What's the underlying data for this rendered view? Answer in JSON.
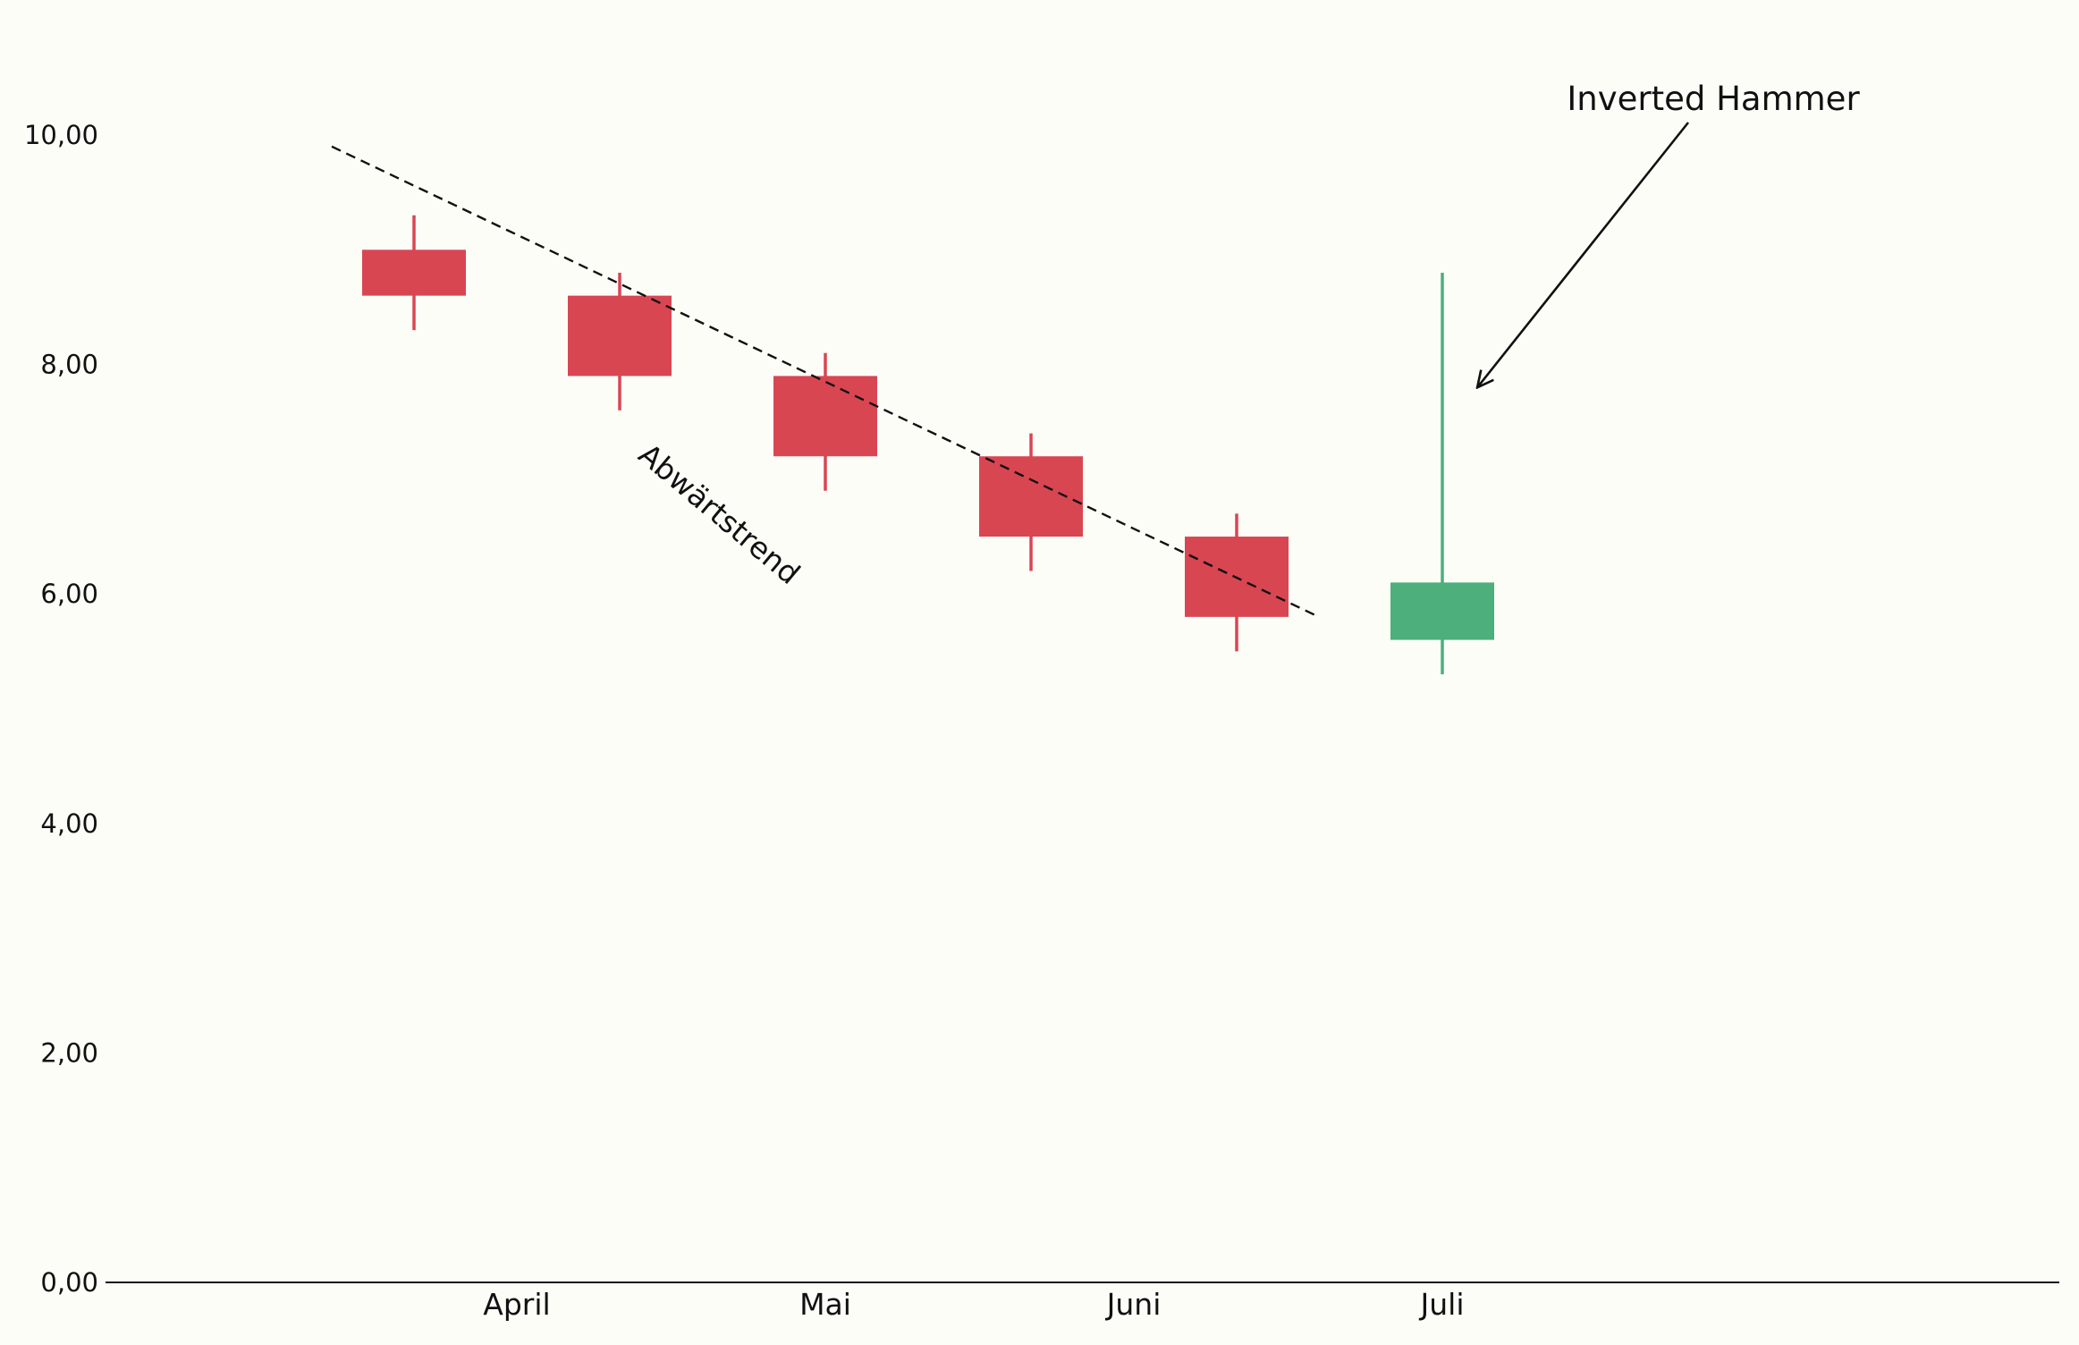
{
  "chart_data": {
    "type": "candlestick",
    "title": "",
    "xlabel": "",
    "ylabel": "",
    "ylim": [
      0,
      10
    ],
    "yticks": [
      "0,00",
      "2,00",
      "4,00",
      "6,00",
      "8,00",
      "10,00"
    ],
    "ytick_values": [
      0,
      2,
      4,
      6,
      8,
      10
    ],
    "xticks": [
      {
        "label": "April",
        "at": 1.5
      },
      {
        "label": "Mai",
        "at": 3.0
      },
      {
        "label": "Juni",
        "at": 4.5
      },
      {
        "label": "Juli",
        "at": 6.0
      }
    ],
    "x_range": [
      -0.5,
      9.0
    ],
    "grid": false,
    "colors": {
      "bearish": "#d84652",
      "bullish": "#4caf7c",
      "axis": "#111111",
      "background": "#fdfdf8"
    },
    "candles": [
      {
        "x": 1,
        "open": 9.0,
        "close": 8.6,
        "high": 9.3,
        "low": 8.3
      },
      {
        "x": 2,
        "open": 8.6,
        "close": 7.9,
        "high": 8.8,
        "low": 7.6
      },
      {
        "x": 3,
        "open": 7.9,
        "close": 7.2,
        "high": 8.1,
        "low": 6.9
      },
      {
        "x": 4,
        "open": 7.2,
        "close": 6.5,
        "high": 7.4,
        "low": 6.2
      },
      {
        "x": 5,
        "open": 6.5,
        "close": 5.8,
        "high": 6.7,
        "low": 5.5
      },
      {
        "x": 6,
        "open": 5.6,
        "close": 6.1,
        "high": 8.8,
        "low": 5.3
      }
    ],
    "trendline": {
      "from": {
        "x": 0.6,
        "y": 9.9
      },
      "to": {
        "x": 5.4,
        "y": 5.8
      },
      "style": "dashed",
      "label": "Abwärtstrend"
    },
    "annotation": {
      "text": "Inverted Hammer",
      "arrow_to": {
        "x": 6.17,
        "y": 7.8
      }
    }
  }
}
